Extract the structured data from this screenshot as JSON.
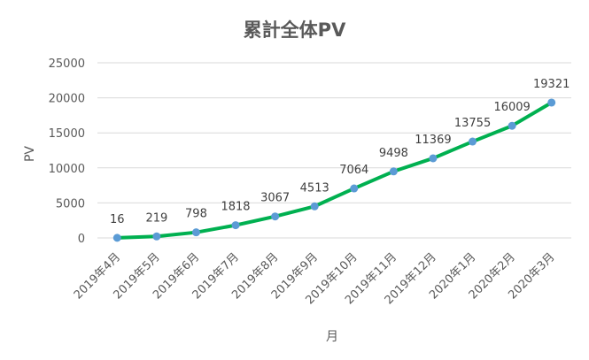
{
  "chart_data": {
    "type": "line",
    "title": "累計全体PV",
    "xlabel": "月",
    "ylabel": "PV",
    "categories": [
      "2019年4月",
      "2019年5月",
      "2019年6月",
      "2019年7月",
      "2019年8月",
      "2019年9月",
      "2019年10月",
      "2019年11月",
      "2019年12月",
      "2020年1月",
      "2020年2月",
      "2020年3月"
    ],
    "values": [
      16,
      219,
      798,
      1818,
      3067,
      4513,
      7064,
      9498,
      11369,
      13755,
      16009,
      19321
    ],
    "yticks": [
      0,
      5000,
      10000,
      15000,
      20000,
      25000
    ],
    "ylim": [
      0,
      25000
    ],
    "grid": true,
    "legend": "none",
    "colors": {
      "line": "#00b050",
      "marker": "#5b9bd5",
      "grid": "#d9d9d9",
      "text": "#595959"
    }
  }
}
